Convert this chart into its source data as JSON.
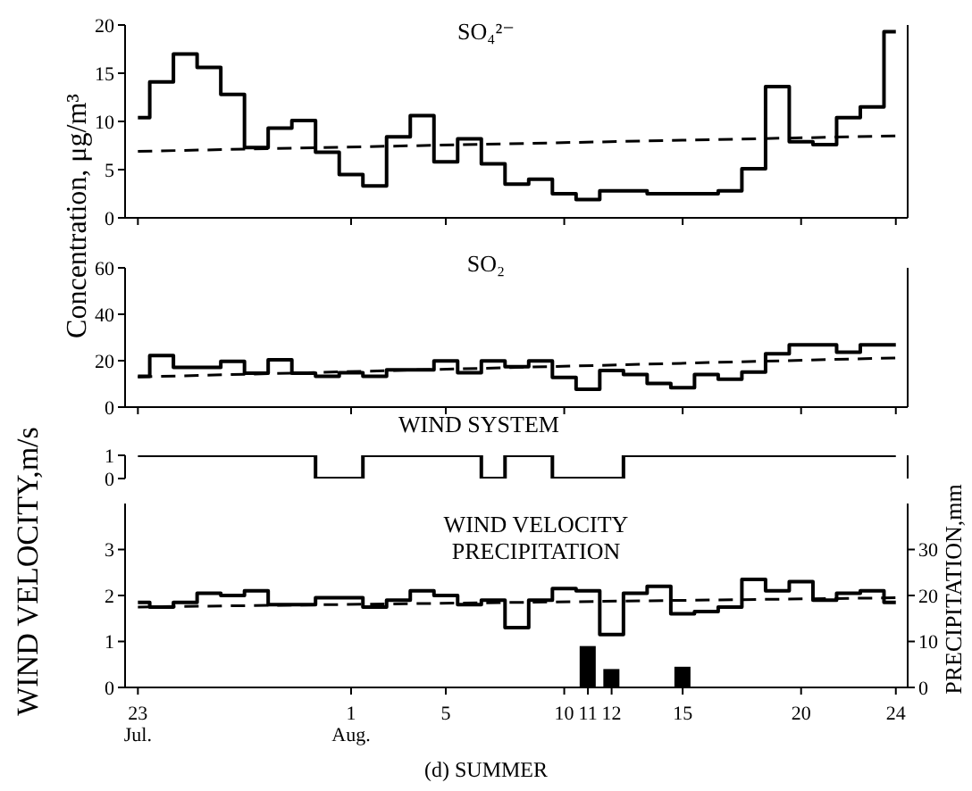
{
  "chart_data": [
    {
      "type": "step",
      "title": "SO₄²⁻",
      "ylabel": "Concentration, μg/m³",
      "x": [
        "--07-23",
        "--07-24",
        "--07-25",
        "--07-26",
        "--07-27",
        "--07-28",
        "--07-29",
        "--07-30",
        "--07-31",
        "--08-01",
        "--08-02",
        "--08-03",
        "--08-04",
        "--08-05",
        "--08-06",
        "--08-07",
        "--08-08",
        "--08-09",
        "--08-10",
        "--08-11",
        "--08-12",
        "--08-13",
        "--08-14",
        "--08-15",
        "--08-16",
        "--08-17",
        "--08-18",
        "--08-19",
        "--08-20",
        "--08-21",
        "--08-22",
        "--08-23",
        "--08-24"
      ],
      "xlim": [
        "--07-22T11:00",
        "--08-24T12:00"
      ],
      "xticks": [
        {
          "value": "--07-23",
          "label": null
        },
        {
          "value": "--08-01",
          "label": null
        },
        {
          "value": "--08-05",
          "label": null
        },
        {
          "value": "--08-10",
          "label": null
        },
        {
          "value": "--08-15",
          "label": null
        },
        {
          "value": "--08-20",
          "label": null
        },
        {
          "value": "--08-24",
          "label": null
        }
      ],
      "tick_labels": "y",
      "ylim": [
        0,
        20
      ],
      "yticks": [
        0,
        5,
        10,
        15,
        20
      ],
      "marker": "none",
      "series": [
        {
          "color": "#000000",
          "values": [
            10.4,
            14.1,
            17.0,
            15.6,
            12.8,
            7.3,
            9.3,
            10.1,
            6.8,
            4.5,
            3.3,
            8.4,
            10.6,
            5.8,
            8.2,
            5.6,
            3.5,
            4.0,
            2.5,
            1.9,
            2.8,
            2.8,
            2.5,
            2.5,
            2.5,
            2.8,
            5.1,
            13.6,
            7.9,
            7.6,
            10.4,
            11.5,
            19.3
          ]
        },
        {
          "type": "line",
          "line_style": "dashed",
          "color": "#000000",
          "x": [
            "--07-23",
            "--08-24"
          ],
          "values": [
            6.9,
            8.5
          ]
        }
      ]
    },
    {
      "type": "step",
      "title": "SO₂",
      "x": [
        "--07-23",
        "--07-24",
        "--07-25",
        "--07-26",
        "--07-27",
        "--07-28",
        "--07-29",
        "--07-30",
        "--07-31",
        "--08-01",
        "--08-02",
        "--08-03",
        "--08-04",
        "--08-05",
        "--08-06",
        "--08-07",
        "--08-08",
        "--08-09",
        "--08-10",
        "--08-11",
        "--08-12",
        "--08-13",
        "--08-14",
        "--08-15",
        "--08-16",
        "--08-17",
        "--08-18",
        "--08-19",
        "--08-20",
        "--08-21",
        "--08-22",
        "--08-23",
        "--08-24"
      ],
      "xlim": [
        "--07-22T11:00",
        "--08-24T12:00"
      ],
      "xticks": [
        {
          "value": "--07-23",
          "label": null
        },
        {
          "value": "--08-01",
          "label": null
        },
        {
          "value": "--08-05",
          "label": null
        },
        {
          "value": "--08-10",
          "label": null
        },
        {
          "value": "--08-15",
          "label": null
        },
        {
          "value": "--08-20",
          "label": null
        },
        {
          "value": "--08-24",
          "label": null
        }
      ],
      "tick_labels": "y",
      "ylim": [
        0,
        60
      ],
      "yticks": [
        0,
        20,
        40,
        60
      ],
      "marker": "none",
      "series": [
        {
          "color": "#000000",
          "values": [
            13.3,
            22.2,
            17.1,
            17.1,
            19.7,
            14.6,
            20.4,
            14.6,
            13.3,
            14.8,
            13.3,
            16.1,
            16.1,
            19.9,
            14.8,
            19.9,
            17.4,
            19.9,
            12.8,
            7.7,
            15.8,
            14.0,
            10.2,
            8.4,
            14.0,
            12.0,
            15.1,
            23.0,
            26.8,
            26.8,
            23.7,
            26.8,
            26.8
          ]
        },
        {
          "type": "line",
          "line_style": "dashed",
          "color": "#000000",
          "x": [
            "--07-23",
            "--08-24"
          ],
          "values": [
            13.0,
            21.2
          ]
        }
      ]
    },
    {
      "type": "step",
      "title": "WIND SYSTEM",
      "x": [
        "--07-23",
        "--07-24",
        "--07-25",
        "--07-26",
        "--07-27",
        "--07-28",
        "--07-29",
        "--07-30",
        "--07-31",
        "--08-01",
        "--08-02",
        "--08-03",
        "--08-04",
        "--08-05",
        "--08-06",
        "--08-07",
        "--08-08",
        "--08-09",
        "--08-10",
        "--08-11",
        "--08-12",
        "--08-13",
        "--08-14",
        "--08-15",
        "--08-16",
        "--08-17",
        "--08-18",
        "--08-19",
        "--08-20",
        "--08-21",
        "--08-22",
        "--08-23",
        "--08-24"
      ],
      "xlim": [
        "--07-22T11:00",
        "--08-24T12:00"
      ],
      "tick_labels": "y",
      "ylim": [
        0,
        1
      ],
      "yticks": [
        0,
        1
      ],
      "marker": "none",
      "series": [
        {
          "color": "#000000",
          "values": [
            1,
            1,
            1,
            1,
            1,
            1,
            1,
            1,
            0,
            0,
            1,
            1,
            1,
            1,
            1,
            0,
            1,
            1,
            0,
            0,
            0,
            1,
            1,
            1,
            1,
            1,
            1,
            1,
            1,
            1,
            1,
            1,
            1
          ]
        }
      ]
    },
    {
      "type": "step",
      "title": "WIND VELOCITY\nPRECIPITATION",
      "ylabel": "WIND VELOCITY,m/s",
      "y2label": "PRECIPITATION,mm",
      "annotations": [
        "(d) SUMMER"
      ],
      "x": [
        "--07-23",
        "--07-24",
        "--07-25",
        "--07-26",
        "--07-27",
        "--07-28",
        "--07-29",
        "--07-30",
        "--07-31",
        "--08-01",
        "--08-02",
        "--08-03",
        "--08-04",
        "--08-05",
        "--08-06",
        "--08-07",
        "--08-08",
        "--08-09",
        "--08-10",
        "--08-11",
        "--08-12",
        "--08-13",
        "--08-14",
        "--08-15",
        "--08-16",
        "--08-17",
        "--08-18",
        "--08-19",
        "--08-20",
        "--08-21",
        "--08-22",
        "--08-23",
        "--08-24"
      ],
      "xlim": [
        "--07-22T11:00",
        "--08-24T12:00"
      ],
      "xticks": [
        {
          "value": "--07-23",
          "label": "23\nJul."
        },
        {
          "value": "--08-01",
          "label": "1\nAug."
        },
        {
          "value": "--08-05",
          "label": "5"
        },
        {
          "value": "--08-10",
          "label": "10"
        },
        {
          "value": "--08-11",
          "label": "11"
        },
        {
          "value": "--08-12",
          "label": "12"
        },
        {
          "value": "--08-15",
          "label": "15"
        },
        {
          "value": "--08-20",
          "label": "20"
        },
        {
          "value": "--08-24",
          "label": "24"
        }
      ],
      "ylim": [
        0,
        4
      ],
      "yticks": [
        0,
        1,
        2,
        3
      ],
      "y2lim": [
        0,
        40
      ],
      "y2ticks": [
        0,
        10,
        20,
        30
      ],
      "marker": "none",
      "series": [
        {
          "color": "#000000",
          "values": [
            1.85,
            1.75,
            1.85,
            2.05,
            2.0,
            2.1,
            1.8,
            1.8,
            1.95,
            1.95,
            1.75,
            1.9,
            2.1,
            2.0,
            1.8,
            1.9,
            1.3,
            1.9,
            2.15,
            2.1,
            1.15,
            2.05,
            2.2,
            1.6,
            1.65,
            1.75,
            2.35,
            2.1,
            2.3,
            1.9,
            2.05,
            2.1,
            1.85
          ]
        },
        {
          "type": "line",
          "line_style": "dashed",
          "color": "#000000",
          "x": [
            "--07-23",
            "--08-24"
          ],
          "values": [
            1.75,
            1.95
          ]
        },
        {
          "type": "bar",
          "axis": "y2",
          "color": "#000000",
          "x": [
            "--08-11",
            "--08-12",
            "--08-15"
          ],
          "values": [
            9,
            4,
            4.5
          ]
        }
      ]
    }
  ]
}
